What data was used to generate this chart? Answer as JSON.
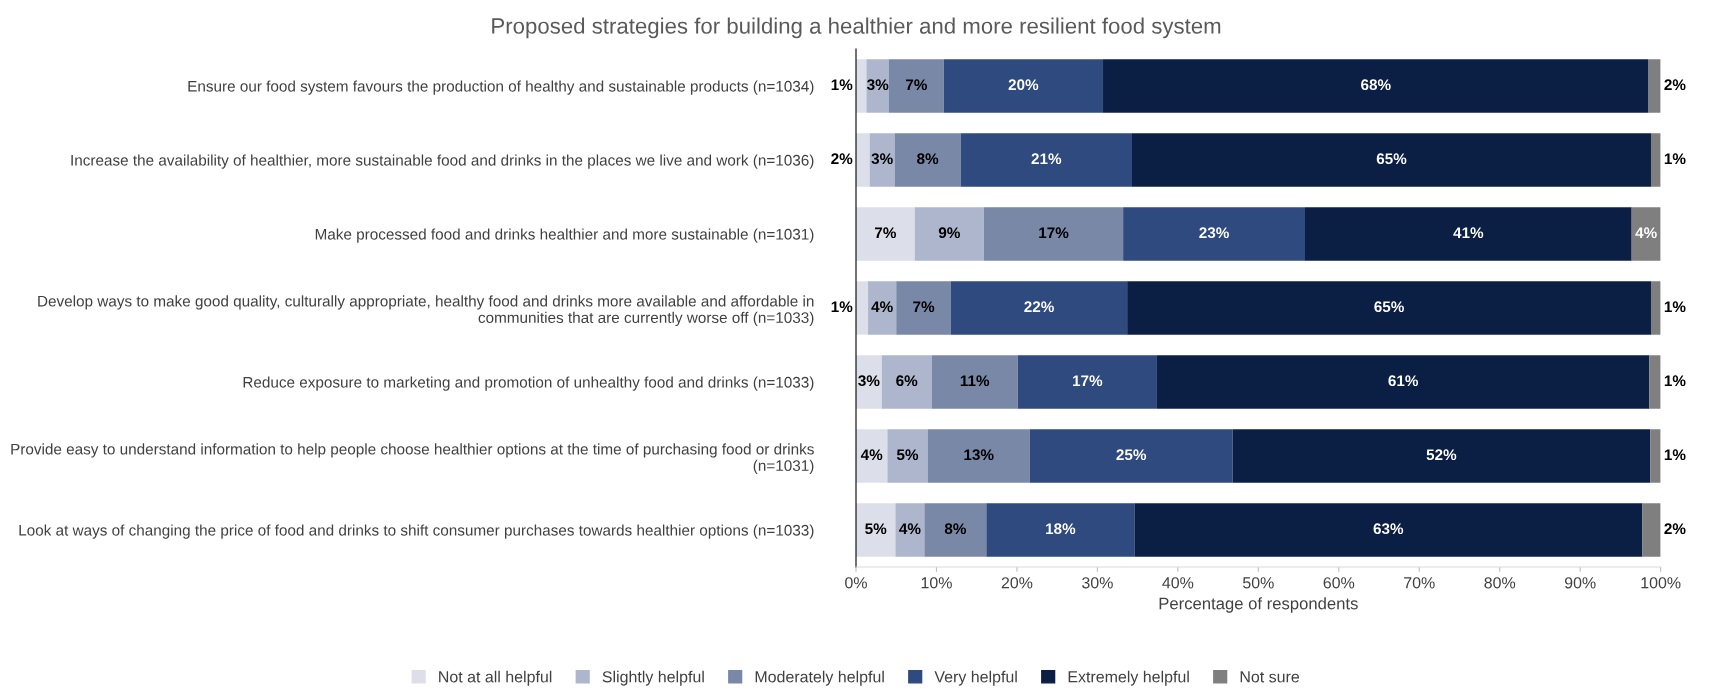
{
  "chart_data": {
    "type": "bar",
    "orientation": "horizontal",
    "stacked": true,
    "title": "Proposed strategies for building a healthier and more resilient food system",
    "xlabel": "Percentage of respondents",
    "categories": [
      "Ensure our food system favours the production of healthy and sustainable products (n=1034)",
      "Increase the availability of healthier, more sustainable food and drinks in the places we live and work (n=1036)",
      "Make processed food and drinks healthier and more sustainable (n=1031)",
      "Develop ways to make good quality, culturally appropriate, healthy food and drinks more available and affordable in\ncommunities that are currently worse off (n=1033)",
      "Reduce exposure to marketing and promotion of unhealthy food and drinks (n=1033)",
      "Provide easy to understand information to help people choose healthier options at the time of purchasing food or drinks\n(n=1031)",
      "Look at ways of changing the price of food and drinks to shift consumer purchases towards healthier options (n=1033)"
    ],
    "series": [
      {
        "name": "Not at all helpful",
        "color": "#dcdfea",
        "values": [
          1.3,
          1.7,
          7.3,
          1.5,
          3.2,
          3.9,
          4.9
        ],
        "value_labels": [
          "1%",
          "2%",
          "7%",
          "1%",
          "3%",
          "4%",
          "5%"
        ]
      },
      {
        "name": "Slightly helpful",
        "color": "#adb6cc",
        "values": [
          2.8,
          3.1,
          8.6,
          3.5,
          6.2,
          5.0,
          3.6
        ],
        "value_labels": [
          "3%",
          "3%",
          "9%",
          "4%",
          "6%",
          "5%",
          "4%"
        ]
      },
      {
        "name": "Moderately helpful",
        "color": "#7a88a8",
        "values": [
          6.8,
          8.2,
          17.3,
          6.8,
          10.7,
          12.7,
          7.7
        ],
        "value_labels": [
          "7%",
          "8%",
          "17%",
          "7%",
          "11%",
          "13%",
          "8%"
        ]
      },
      {
        "name": "Very helpful",
        "color": "#2f4a7e",
        "values": [
          19.8,
          21.3,
          22.6,
          21.9,
          17.3,
          25.2,
          18.4
        ],
        "value_labels": [
          "20%",
          "21%",
          "23%",
          "22%",
          "17%",
          "25%",
          "18%"
        ]
      },
      {
        "name": "Extremely helpful",
        "color": "#0b1f45",
        "values": [
          67.8,
          64.5,
          40.6,
          65.1,
          61.2,
          51.9,
          63.1
        ],
        "value_labels": [
          "68%",
          "65%",
          "41%",
          "65%",
          "61%",
          "52%",
          "63%"
        ]
      },
      {
        "name": "Not sure",
        "color": "#7f7f7f",
        "values": [
          1.5,
          1.2,
          3.6,
          1.2,
          1.4,
          1.3,
          2.3
        ],
        "value_labels": [
          "2%",
          "1%",
          "4%",
          "1%",
          "1%",
          "1%",
          "2%"
        ]
      }
    ],
    "xlim": [
      0,
      100
    ],
    "xticks": [
      {
        "value": 0,
        "label": "0%"
      },
      {
        "value": 10,
        "label": "10%"
      },
      {
        "value": 20,
        "label": "20%"
      },
      {
        "value": 30,
        "label": "30%"
      },
      {
        "value": 40,
        "label": "40%"
      },
      {
        "value": 50,
        "label": "50%"
      },
      {
        "value": 60,
        "label": "60%"
      },
      {
        "value": 70,
        "label": "70%"
      },
      {
        "value": 80,
        "label": "80%"
      },
      {
        "value": 90,
        "label": "90%"
      },
      {
        "value": 100,
        "label": "100%"
      }
    ],
    "legend": "bottom",
    "grid": false
  }
}
